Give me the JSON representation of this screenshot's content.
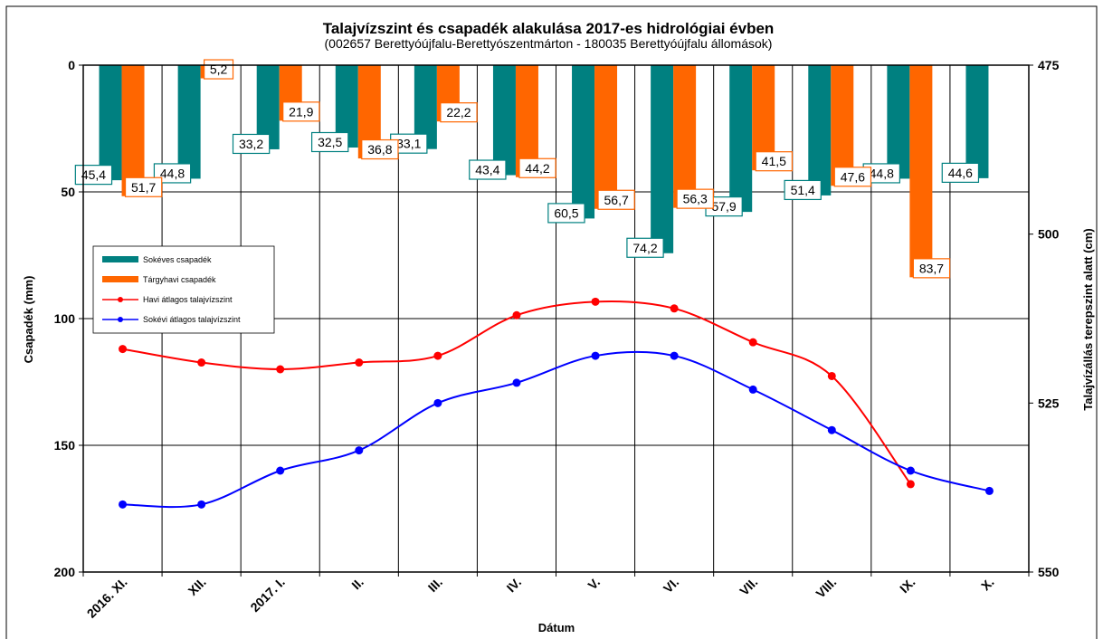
{
  "chart_data": {
    "type": "bar+line",
    "title": "Talajvízszint és csapadék alakulása 2017-es hidrológiai évben",
    "subtitle": "(002657  Berettyóújfalu-Berettyószentmárton  - 180035  Berettyóújfalu  állomások)",
    "xlabel": "Dátum",
    "ylabel": "Csapadék (mm)",
    "y2label": "Talajvízállás terepszint alatt (cm)",
    "categories": [
      "2016. XI.",
      "XII.",
      "2017. I.",
      "II.",
      "III.",
      "IV.",
      "V.",
      "VI.",
      "VII.",
      "VIII.",
      "IX.",
      "X."
    ],
    "ylim": [
      0,
      200
    ],
    "y_inverted": true,
    "y_ticks": [
      0,
      50,
      100,
      150,
      200
    ],
    "y2lim": [
      475,
      550
    ],
    "y2_inverted": true,
    "y2_ticks": [
      475,
      500,
      525,
      550
    ],
    "grid": true,
    "series": [
      {
        "name": "Sokéves csapadék",
        "kind": "bar",
        "axis": "left",
        "color": "#008080",
        "values": [
          45.4,
          44.8,
          33.2,
          32.5,
          33.1,
          43.4,
          60.5,
          74.2,
          57.9,
          51.4,
          44.8,
          44.6
        ],
        "labels": [
          "45,4",
          "44,8",
          "33,2",
          "32,5",
          "33,1",
          "43,4",
          "60,5",
          "74,2",
          "57,9",
          "51,4",
          "44,8",
          "44,6"
        ]
      },
      {
        "name": "Tárgyhavi csapadék",
        "kind": "bar",
        "axis": "left",
        "color": "#FF6600",
        "values": [
          51.7,
          5.2,
          21.9,
          36.8,
          22.2,
          44.2,
          56.7,
          56.3,
          41.5,
          47.6,
          83.7,
          null
        ],
        "labels": [
          "51,7",
          "5,2",
          "21,9",
          "36,8",
          "22,2",
          "44,2",
          "56,7",
          "56,3",
          "41,5",
          "47,6",
          "83,7",
          null
        ]
      },
      {
        "name": "Havi átlagos talajvízszint",
        "kind": "line",
        "axis": "right",
        "color": "#FF0000",
        "values": [
          517,
          519,
          520,
          519,
          518,
          512,
          510,
          511,
          516,
          521,
          537,
          null
        ]
      },
      {
        "name": "Sokévi átlagos talajvízszint",
        "kind": "line",
        "axis": "right",
        "color": "#0000FF",
        "values": [
          540,
          540,
          535,
          532,
          525,
          522,
          518,
          518,
          523,
          529,
          535,
          538
        ]
      }
    ],
    "legend_position": "left-middle"
  }
}
